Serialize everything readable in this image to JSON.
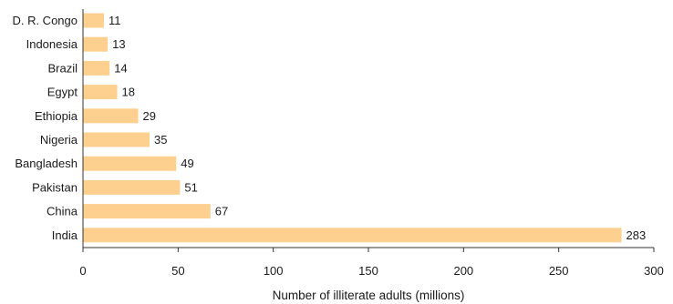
{
  "colors": {
    "bar": "#fdd08f",
    "axis": "#333333",
    "text": "#1a1a1a"
  },
  "chart_data": {
    "type": "bar",
    "orientation": "horizontal",
    "categories": [
      "D. R. Congo",
      "Indonesia",
      "Brazil",
      "Egypt",
      "Ethiopia",
      "Nigeria",
      "Bangladesh",
      "Pakistan",
      "China",
      "India"
    ],
    "values": [
      11,
      13,
      14,
      18,
      29,
      35,
      49,
      51,
      67,
      283
    ],
    "xlabel": "Number of illiterate adults (millions)",
    "ylabel": "",
    "xlim": [
      0,
      300
    ],
    "xticks": [
      0,
      50,
      100,
      150,
      200,
      250,
      300
    ],
    "grid": false,
    "legend": "none"
  }
}
